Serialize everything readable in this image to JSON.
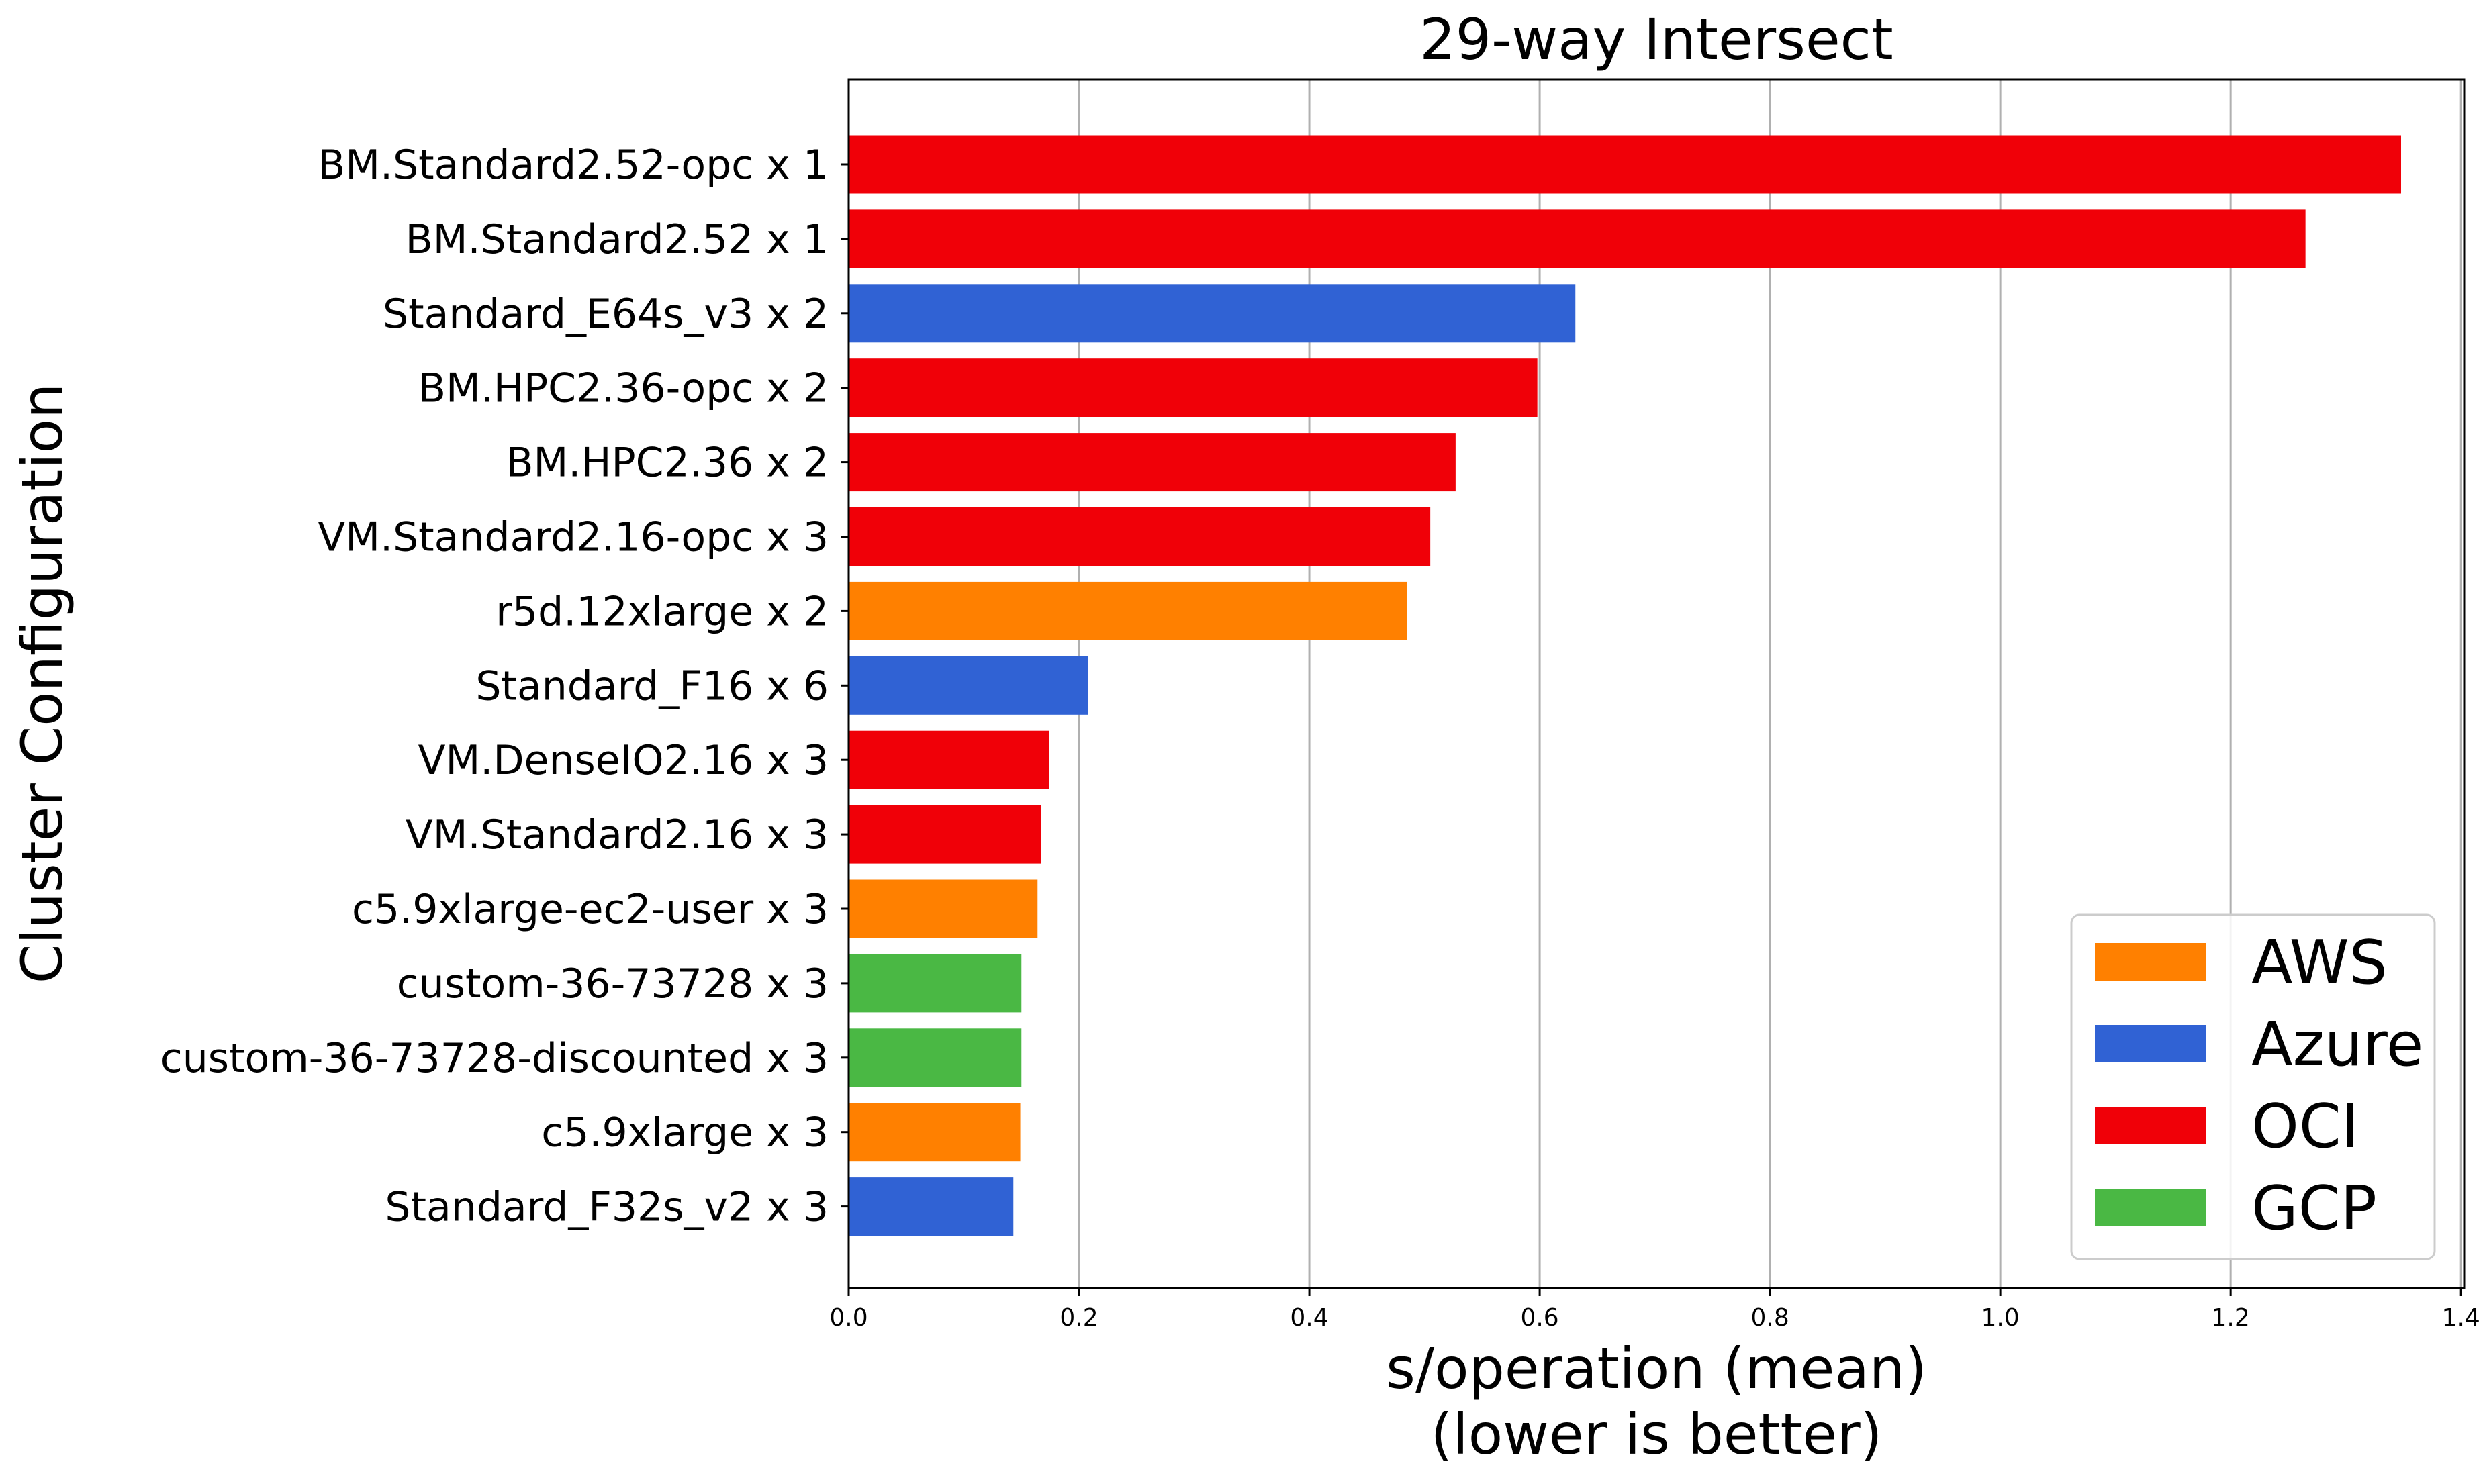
{
  "chart_data": {
    "type": "bar",
    "orientation": "horizontal",
    "title": "29-way Intersect",
    "xlabel_line1": "s/operation (mean)",
    "xlabel_line2": "(lower is better)",
    "ylabel": "Cluster Configuration",
    "xlim": [
      0,
      1.4
    ],
    "xticks": [
      "0.0",
      "0.2",
      "0.4",
      "0.6",
      "0.8",
      "1.0",
      "1.2",
      "1.4"
    ],
    "grid": "vertical",
    "legend_position": "lower-right",
    "providers": [
      {
        "name": "AWS",
        "color": "#ff8000"
      },
      {
        "name": "Azure",
        "color": "#3062d4"
      },
      {
        "name": "OCI",
        "color": "#f00008"
      },
      {
        "name": "GCP",
        "color": "#4ab844"
      }
    ],
    "bars": [
      {
        "label": "BM.Standard2.52-opc x 1",
        "value": 1.348,
        "provider": "OCI"
      },
      {
        "label": "BM.Standard2.52 x 1",
        "value": 1.265,
        "provider": "OCI"
      },
      {
        "label": "Standard_E64s_v3 x 2",
        "value": 0.631,
        "provider": "Azure"
      },
      {
        "label": "BM.HPC2.36-opc x 2",
        "value": 0.598,
        "provider": "OCI"
      },
      {
        "label": "BM.HPC2.36 x 2",
        "value": 0.527,
        "provider": "OCI"
      },
      {
        "label": "VM.Standard2.16-opc x 3",
        "value": 0.505,
        "provider": "OCI"
      },
      {
        "label": "r5d.12xlarge x 2",
        "value": 0.485,
        "provider": "AWS"
      },
      {
        "label": "Standard_F16 x 6",
        "value": 0.208,
        "provider": "Azure"
      },
      {
        "label": "VM.DenseIO2.16 x 3",
        "value": 0.174,
        "provider": "OCI"
      },
      {
        "label": "VM.Standard2.16 x 3",
        "value": 0.167,
        "provider": "OCI"
      },
      {
        "label": "c5.9xlarge-ec2-user x 3",
        "value": 0.164,
        "provider": "AWS"
      },
      {
        "label": "custom-36-73728 x 3",
        "value": 0.15,
        "provider": "GCP"
      },
      {
        "label": "custom-36-73728-discounted x 3",
        "value": 0.15,
        "provider": "GCP"
      },
      {
        "label": "c5.9xlarge x 3",
        "value": 0.149,
        "provider": "AWS"
      },
      {
        "label": "Standard_F32s_v2 x 3",
        "value": 0.143,
        "provider": "Azure"
      }
    ]
  }
}
